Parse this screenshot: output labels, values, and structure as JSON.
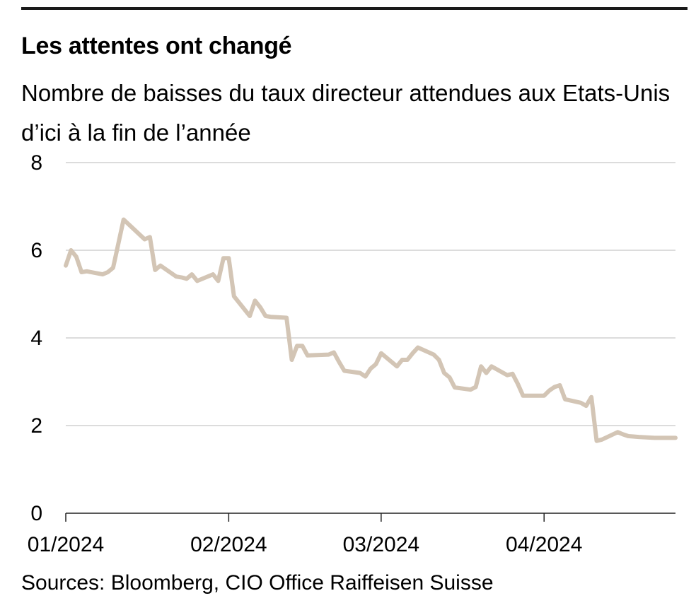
{
  "title": "Les attentes ont changé",
  "subtitle": "Nombre de baisses du taux directeur attendues aux Etats-Unis d’ici à la fin de l’année",
  "source": "Sources: Bloomberg, CIO Office Raiffeisen Suisse",
  "colors": {
    "line": "#d3c5b5",
    "grid": "#c8c8c8",
    "axis": "#222222",
    "rule": "#1a1a1a"
  },
  "chart_data": {
    "type": "line",
    "title": "Les attentes ont changé",
    "subtitle": "Nombre de baisses du taux directeur attendues aux Etats-Unis d’ici à la fin de l’année",
    "xlabel": "",
    "ylabel": "",
    "ylim": [
      0,
      8
    ],
    "yticks": [
      0,
      2,
      4,
      6,
      8
    ],
    "xlim": [
      "2024-01-01",
      "2024-04-26"
    ],
    "xticks": [
      {
        "date": "2024-01-01",
        "label": "01/2024"
      },
      {
        "date": "2024-02-01",
        "label": "02/2024"
      },
      {
        "date": "2024-03-01",
        "label": "03/2024"
      },
      {
        "date": "2024-04-01",
        "label": "04/2024"
      }
    ],
    "grid": true,
    "legend": "none",
    "series": [
      {
        "x": [
          "2024-01-01",
          "2024-01-02",
          "2024-01-03",
          "2024-01-04",
          "2024-01-05",
          "2024-01-08",
          "2024-01-09",
          "2024-01-10",
          "2024-01-11",
          "2024-01-12",
          "2024-01-16",
          "2024-01-17",
          "2024-01-18",
          "2024-01-19",
          "2024-01-22",
          "2024-01-23",
          "2024-01-24",
          "2024-01-25",
          "2024-01-26",
          "2024-01-29",
          "2024-01-30",
          "2024-01-31",
          "2024-02-01",
          "2024-02-02",
          "2024-02-05",
          "2024-02-06",
          "2024-02-07",
          "2024-02-08",
          "2024-02-09",
          "2024-02-12",
          "2024-02-13",
          "2024-02-14",
          "2024-02-15",
          "2024-02-16",
          "2024-02-20",
          "2024-02-21",
          "2024-02-22",
          "2024-02-23",
          "2024-02-26",
          "2024-02-27",
          "2024-02-28",
          "2024-02-29",
          "2024-03-01",
          "2024-03-04",
          "2024-03-05",
          "2024-03-06",
          "2024-03-07",
          "2024-03-08",
          "2024-03-11",
          "2024-03-12",
          "2024-03-13",
          "2024-03-14",
          "2024-03-15",
          "2024-03-18",
          "2024-03-19",
          "2024-03-20",
          "2024-03-21",
          "2024-03-22",
          "2024-03-25",
          "2024-03-26",
          "2024-03-27",
          "2024-03-28",
          "2024-04-01",
          "2024-04-02",
          "2024-04-03",
          "2024-04-04",
          "2024-04-05",
          "2024-04-08",
          "2024-04-09",
          "2024-04-10",
          "2024-04-11",
          "2024-04-12",
          "2024-04-15",
          "2024-04-16",
          "2024-04-17",
          "2024-04-18",
          "2024-04-19",
          "2024-04-22",
          "2024-04-23",
          "2024-04-24",
          "2024-04-25",
          "2024-04-26"
        ],
        "values": [
          5.65,
          6.0,
          5.85,
          5.5,
          5.52,
          5.45,
          5.5,
          5.6,
          6.15,
          6.7,
          6.25,
          6.3,
          5.55,
          5.65,
          5.4,
          5.38,
          5.35,
          5.45,
          5.3,
          5.45,
          5.3,
          5.82,
          5.82,
          4.95,
          4.5,
          4.85,
          4.7,
          4.5,
          4.48,
          4.46,
          3.5,
          3.82,
          3.82,
          3.6,
          3.62,
          3.67,
          3.45,
          3.25,
          3.2,
          3.12,
          3.3,
          3.4,
          3.65,
          3.35,
          3.5,
          3.5,
          3.65,
          3.78,
          3.62,
          3.5,
          3.2,
          3.1,
          2.87,
          2.82,
          2.88,
          3.35,
          3.2,
          3.35,
          3.15,
          3.18,
          2.95,
          2.68,
          2.68,
          2.8,
          2.88,
          2.92,
          2.6,
          2.52,
          2.45,
          2.65,
          1.65,
          1.68,
          1.85,
          1.8,
          1.76,
          1.75,
          1.74,
          1.72,
          1.72,
          1.72,
          1.72,
          1.72
        ]
      }
    ]
  }
}
